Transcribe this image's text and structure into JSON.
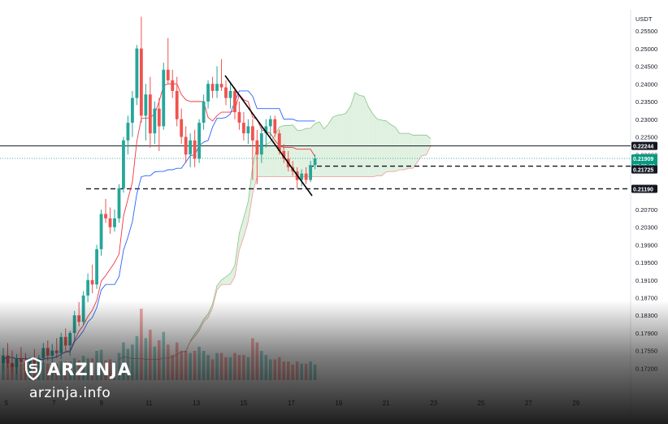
{
  "chart_data": {
    "type": "candlestick",
    "quote_currency": "USDT",
    "y_axis_ticks": [
      "0.25500",
      "0.25000",
      "0.24500",
      "0.24000",
      "0.23500",
      "0.23000",
      "0.22500",
      "0.22000",
      "0.20700",
      "0.20300",
      "0.19900",
      "0.19500",
      "0.19100",
      "0.18700",
      "0.18300",
      "0.17900",
      "0.17550",
      "0.17200"
    ],
    "x_axis_ticks": [
      "5",
      "7",
      "9",
      "11",
      "13",
      "15",
      "17",
      "19",
      "21",
      "23",
      "25",
      "27",
      "29"
    ],
    "price_levels": {
      "resistance": "0.22244",
      "current_price": "0.21909",
      "countdown": "02:25:29",
      "dashed_level_1": "0.21725",
      "dashed_level_2": "0.21190"
    },
    "colors": {
      "up": "#26a69a",
      "down": "#ef5350",
      "current": "#089981",
      "tenkan": "#f23645",
      "kijun": "#2962ff",
      "cloud_bull": "#c8e6c9",
      "cloud_bear": "#ffcdd2"
    },
    "candles": [
      {
        "o": 0.173,
        "h": 0.176,
        "l": 0.1715,
        "c": 0.1745
      },
      {
        "o": 0.1745,
        "h": 0.177,
        "l": 0.172,
        "c": 0.173
      },
      {
        "o": 0.173,
        "h": 0.1755,
        "l": 0.1712,
        "c": 0.1722
      },
      {
        "o": 0.1722,
        "h": 0.1748,
        "l": 0.1708,
        "c": 0.174
      },
      {
        "o": 0.174,
        "h": 0.1762,
        "l": 0.1725,
        "c": 0.1732
      },
      {
        "o": 0.1732,
        "h": 0.175,
        "l": 0.171,
        "c": 0.1718
      },
      {
        "o": 0.1718,
        "h": 0.1742,
        "l": 0.1705,
        "c": 0.1736
      },
      {
        "o": 0.1736,
        "h": 0.1758,
        "l": 0.1722,
        "c": 0.1728
      },
      {
        "o": 0.1728,
        "h": 0.1746,
        "l": 0.171,
        "c": 0.174
      },
      {
        "o": 0.174,
        "h": 0.177,
        "l": 0.1728,
        "c": 0.176
      },
      {
        "o": 0.176,
        "h": 0.1775,
        "l": 0.1735,
        "c": 0.1745
      },
      {
        "o": 0.1745,
        "h": 0.1768,
        "l": 0.173,
        "c": 0.1755
      },
      {
        "o": 0.1755,
        "h": 0.178,
        "l": 0.174,
        "c": 0.175
      },
      {
        "o": 0.175,
        "h": 0.179,
        "l": 0.1738,
        "c": 0.1782
      },
      {
        "o": 0.1782,
        "h": 0.18,
        "l": 0.175,
        "c": 0.1765
      },
      {
        "o": 0.1765,
        "h": 0.1795,
        "l": 0.1745,
        "c": 0.179
      },
      {
        "o": 0.179,
        "h": 0.184,
        "l": 0.1775,
        "c": 0.183
      },
      {
        "o": 0.183,
        "h": 0.186,
        "l": 0.1805,
        "c": 0.1815
      },
      {
        "o": 0.1815,
        "h": 0.1885,
        "l": 0.1808,
        "c": 0.1875
      },
      {
        "o": 0.1875,
        "h": 0.1925,
        "l": 0.186,
        "c": 0.191
      },
      {
        "o": 0.191,
        "h": 0.1945,
        "l": 0.188,
        "c": 0.19
      },
      {
        "o": 0.19,
        "h": 0.199,
        "l": 0.189,
        "c": 0.198
      },
      {
        "o": 0.198,
        "h": 0.207,
        "l": 0.1965,
        "c": 0.206
      },
      {
        "o": 0.206,
        "h": 0.2095,
        "l": 0.204,
        "c": 0.205
      },
      {
        "o": 0.205,
        "h": 0.2075,
        "l": 0.2015,
        "c": 0.203
      },
      {
        "o": 0.203,
        "h": 0.207,
        "l": 0.202,
        "c": 0.205
      },
      {
        "o": 0.205,
        "h": 0.213,
        "l": 0.204,
        "c": 0.212
      },
      {
        "o": 0.212,
        "h": 0.225,
        "l": 0.211,
        "c": 0.224
      },
      {
        "o": 0.224,
        "h": 0.231,
        "l": 0.22,
        "c": 0.229
      },
      {
        "o": 0.229,
        "h": 0.238,
        "l": 0.225,
        "c": 0.236
      },
      {
        "o": 0.236,
        "h": 0.251,
        "l": 0.234,
        "c": 0.25
      },
      {
        "o": 0.25,
        "h": 0.259,
        "l": 0.229,
        "c": 0.231
      },
      {
        "o": 0.231,
        "h": 0.24,
        "l": 0.224,
        "c": 0.237
      },
      {
        "o": 0.237,
        "h": 0.242,
        "l": 0.222,
        "c": 0.226
      },
      {
        "o": 0.226,
        "h": 0.235,
        "l": 0.223,
        "c": 0.233
      },
      {
        "o": 0.233,
        "h": 0.236,
        "l": 0.221,
        "c": 0.228
      },
      {
        "o": 0.228,
        "h": 0.246,
        "l": 0.227,
        "c": 0.244
      },
      {
        "o": 0.244,
        "h": 0.253,
        "l": 0.24,
        "c": 0.241
      },
      {
        "o": 0.241,
        "h": 0.244,
        "l": 0.236,
        "c": 0.238
      },
      {
        "o": 0.238,
        "h": 0.242,
        "l": 0.228,
        "c": 0.23
      },
      {
        "o": 0.23,
        "h": 0.233,
        "l": 0.223,
        "c": 0.225
      },
      {
        "o": 0.225,
        "h": 0.228,
        "l": 0.218,
        "c": 0.22
      },
      {
        "o": 0.22,
        "h": 0.226,
        "l": 0.217,
        "c": 0.224
      },
      {
        "o": 0.224,
        "h": 0.227,
        "l": 0.217,
        "c": 0.219
      },
      {
        "o": 0.219,
        "h": 0.23,
        "l": 0.218,
        "c": 0.229
      },
      {
        "o": 0.229,
        "h": 0.237,
        "l": 0.227,
        "c": 0.235
      },
      {
        "o": 0.235,
        "h": 0.241,
        "l": 0.233,
        "c": 0.24
      },
      {
        "o": 0.24,
        "h": 0.242,
        "l": 0.236,
        "c": 0.238
      },
      {
        "o": 0.238,
        "h": 0.245,
        "l": 0.236,
        "c": 0.24
      },
      {
        "o": 0.24,
        "h": 0.247,
        "l": 0.238,
        "c": 0.239
      },
      {
        "o": 0.239,
        "h": 0.241,
        "l": 0.234,
        "c": 0.236
      },
      {
        "o": 0.236,
        "h": 0.24,
        "l": 0.233,
        "c": 0.238
      },
      {
        "o": 0.238,
        "h": 0.239,
        "l": 0.23,
        "c": 0.232
      },
      {
        "o": 0.232,
        "h": 0.235,
        "l": 0.227,
        "c": 0.229
      },
      {
        "o": 0.229,
        "h": 0.232,
        "l": 0.224,
        "c": 0.226
      },
      {
        "o": 0.226,
        "h": 0.23,
        "l": 0.223,
        "c": 0.228
      },
      {
        "o": 0.228,
        "h": 0.23,
        "l": 0.214,
        "c": 0.224
      },
      {
        "o": 0.224,
        "h": 0.227,
        "l": 0.213,
        "c": 0.22
      },
      {
        "o": 0.22,
        "h": 0.228,
        "l": 0.218,
        "c": 0.226
      },
      {
        "o": 0.226,
        "h": 0.23,
        "l": 0.222,
        "c": 0.228
      },
      {
        "o": 0.228,
        "h": 0.231,
        "l": 0.225,
        "c": 0.23
      },
      {
        "o": 0.23,
        "h": 0.231,
        "l": 0.225,
        "c": 0.226
      },
      {
        "o": 0.226,
        "h": 0.227,
        "l": 0.22,
        "c": 0.221
      },
      {
        "o": 0.221,
        "h": 0.223,
        "l": 0.218,
        "c": 0.219
      },
      {
        "o": 0.219,
        "h": 0.221,
        "l": 0.216,
        "c": 0.217
      },
      {
        "o": 0.217,
        "h": 0.2185,
        "l": 0.215,
        "c": 0.216
      },
      {
        "o": 0.216,
        "h": 0.217,
        "l": 0.212,
        "c": 0.214
      },
      {
        "o": 0.214,
        "h": 0.2165,
        "l": 0.2125,
        "c": 0.2155
      },
      {
        "o": 0.2155,
        "h": 0.217,
        "l": 0.213,
        "c": 0.214
      },
      {
        "o": 0.214,
        "h": 0.2185,
        "l": 0.2135,
        "c": 0.2175
      },
      {
        "o": 0.2175,
        "h": 0.22,
        "l": 0.2165,
        "c": 0.2191
      }
    ]
  },
  "watermark": {
    "brand": "ARZINJA",
    "url": "arzinja.info"
  }
}
